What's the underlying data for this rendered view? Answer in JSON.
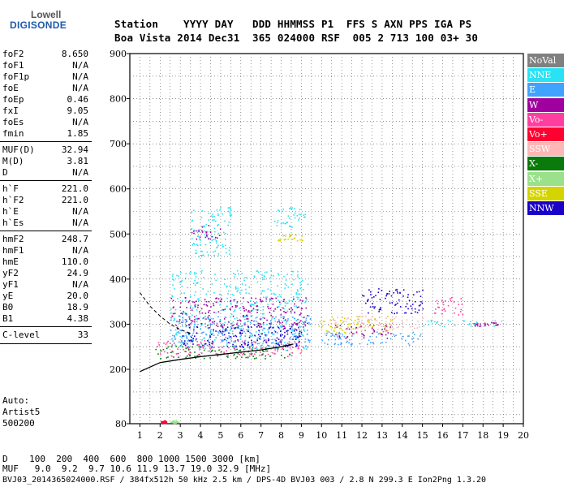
{
  "logo": {
    "line1": "Lowell",
    "line2": "DIGISONDE"
  },
  "header": {
    "line1": "Station    YYYY DAY   DDD HHMMSS P1  FFS S AXN PPS IGA PS",
    "line2": "Boa Vista 2014 Dec31  365 024000 RSF  005 2 713 100 03+ 30"
  },
  "params": [
    {
      "k": "foF2",
      "v": "8.650"
    },
    {
      "k": "foF1",
      "v": "N/A"
    },
    {
      "k": "foF1p",
      "v": "N/A"
    },
    {
      "k": "foE",
      "v": "N/A"
    },
    {
      "k": "foEp",
      "v": "0.46"
    },
    {
      "k": "fxI",
      "v": "9.05"
    },
    {
      "k": "foEs",
      "v": "N/A"
    },
    {
      "k": "fmin",
      "v": "1.85"
    },
    {
      "k": "MUF(D)",
      "v": "32.94"
    },
    {
      "k": "M(D)",
      "v": "3.81"
    },
    {
      "k": "D",
      "v": "N/A"
    },
    {
      "k": "h`F",
      "v": "221.0"
    },
    {
      "k": "h`F2",
      "v": "221.0"
    },
    {
      "k": "h`E",
      "v": "N/A"
    },
    {
      "k": "h`Es",
      "v": "N/A"
    },
    {
      "k": "hmF2",
      "v": "248.7"
    },
    {
      "k": "hmF1",
      "v": "N/A"
    },
    {
      "k": "hmE",
      "v": "110.0"
    },
    {
      "k": "yF2",
      "v": "24.9"
    },
    {
      "k": "yF1",
      "v": "N/A"
    },
    {
      "k": "yE",
      "v": "20.0"
    },
    {
      "k": "B0",
      "v": "18.9"
    },
    {
      "k": "B1",
      "v": "4.38"
    },
    {
      "k": "C-level",
      "v": "33"
    }
  ],
  "auto": {
    "l1": "Auto:",
    "l2": "Artist5",
    "l3": "500200"
  },
  "footer": {
    "d_row": "D    100  200  400  600  800 1000 1500 3000 [km]",
    "muf_row": "MUF   9.0  9.2  9.7 10.6 11.9 13.7 19.0 32.9 [MHz]",
    "file_row": "BVJ03_2014365024000.RSF / 384fx512h 50 kHz 2.5 km / DPS-4D BVJ03 003 / 2.8 N 299.3 E Ion2Png 1.3.20"
  },
  "legend": [
    {
      "label": "NoVal",
      "bg": "#808080",
      "fg": "#ffffff"
    },
    {
      "label": "NNE",
      "bg": "#29e3f5",
      "fg": "#ffffff"
    },
    {
      "label": "E",
      "bg": "#3fa3ff",
      "fg": "#ffffff"
    },
    {
      "label": "W",
      "bg": "#a0009e",
      "fg": "#ffffff"
    },
    {
      "label": "Vo-",
      "bg": "#ff3fa0",
      "fg": "#ffffff"
    },
    {
      "label": "Vo+",
      "bg": "#ff0030",
      "fg": "#ffffff"
    },
    {
      "label": "SSW",
      "bg": "#ffb6b6",
      "fg": "#ffffff"
    },
    {
      "label": "X-",
      "bg": "#0a7a0a",
      "fg": "#ffffff"
    },
    {
      "label": "X+",
      "bg": "#9be08b",
      "fg": "#ffffff"
    },
    {
      "label": "SSE",
      "bg": "#d4d400",
      "fg": "#ffffff"
    },
    {
      "label": "NNW",
      "bg": "#1c00c8",
      "fg": "#ffffff"
    }
  ],
  "chart_data": {
    "type": "scatter",
    "title": "",
    "xlabel": "",
    "ylabel": "",
    "xlim": [
      0.5,
      20
    ],
    "ylim": [
      80,
      900
    ],
    "xticks": [
      "1",
      "2",
      "3",
      "4",
      "5",
      "6",
      "7",
      "8",
      "9",
      "10",
      "11",
      "12",
      "13",
      "14",
      "15",
      "16",
      "17",
      "18",
      "19",
      "20"
    ],
    "yticks": [
      "80",
      "200",
      "300",
      "400",
      "500",
      "600",
      "700",
      "800",
      "900"
    ],
    "grid": true,
    "legend_position": "right",
    "profile": {
      "x": [
        1.0,
        2.0,
        3.0,
        4.0,
        5.0,
        6.0,
        7.0,
        8.0,
        8.6
      ],
      "y": [
        195,
        215,
        222,
        228,
        233,
        238,
        243,
        250,
        256
      ]
    },
    "profile_extrapolation": {
      "x": [
        1.0,
        1.5,
        2.0,
        2.5,
        3.0,
        3.5
      ],
      "y": [
        370,
        340,
        318,
        300,
        288,
        280
      ]
    },
    "echo_clusters": [
      {
        "series": "Vo+",
        "x": [
          2.0,
          2.3
        ],
        "y": [
          82,
          88
        ]
      },
      {
        "series": "X+",
        "x": [
          2.5,
          2.9
        ],
        "y": [
          82,
          88
        ]
      },
      {
        "series": "X-",
        "x": [
          1.7,
          8.6
        ],
        "y": [
          225,
          255
        ]
      },
      {
        "series": "Vo-",
        "x": [
          1.8,
          9.1
        ],
        "y": [
          230,
          265
        ]
      },
      {
        "series": "NNE",
        "x": [
          2.5,
          9.3
        ],
        "y": [
          240,
          420
        ]
      },
      {
        "series": "W",
        "x": [
          2.5,
          9.3
        ],
        "y": [
          290,
          360
        ]
      },
      {
        "series": "E",
        "x": [
          2.5,
          9.5
        ],
        "y": [
          250,
          320
        ]
      },
      {
        "series": "NNW",
        "x": [
          3.0,
          9.0
        ],
        "y": [
          250,
          300
        ]
      },
      {
        "series": "NNE",
        "x": [
          3.5,
          5.5
        ],
        "y": [
          450,
          560
        ]
      },
      {
        "series": "W",
        "x": [
          3.5,
          5.0
        ],
        "y": [
          490,
          520
        ]
      },
      {
        "series": "NNE",
        "x": [
          7.5,
          9.2
        ],
        "y": [
          515,
          560
        ]
      },
      {
        "series": "SSE",
        "x": [
          7.8,
          9.1
        ],
        "y": [
          485,
          500
        ]
      },
      {
        "series": "E",
        "x": [
          10.0,
          15.0
        ],
        "y": [
          255,
          285
        ]
      },
      {
        "series": "SSW",
        "x": [
          10.3,
          15.0
        ],
        "y": [
          290,
          320
        ]
      },
      {
        "series": "NNW",
        "x": [
          12.0,
          15.0
        ],
        "y": [
          325,
          380
        ]
      },
      {
        "series": "W",
        "x": [
          10.5,
          13.5
        ],
        "y": [
          270,
          300
        ]
      },
      {
        "series": "SSE",
        "x": [
          9.8,
          13.5
        ],
        "y": [
          280,
          320
        ]
      },
      {
        "series": "Vo-",
        "x": [
          15.5,
          17.0
        ],
        "y": [
          320,
          360
        ]
      },
      {
        "series": "W",
        "x": [
          17.5,
          19.0
        ],
        "y": [
          296,
          306
        ]
      },
      {
        "series": "NNE",
        "x": [
          15.0,
          19.0
        ],
        "y": [
          296,
          310
        ]
      }
    ]
  }
}
